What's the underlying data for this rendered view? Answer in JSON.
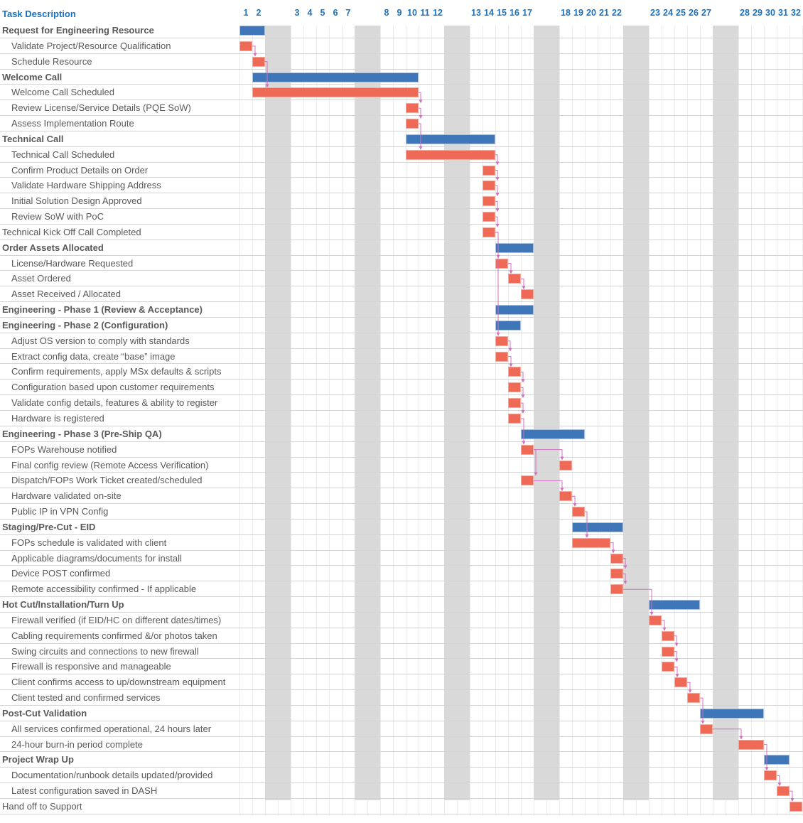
{
  "header": {
    "title": "Task Description"
  },
  "colors": {
    "summary": "#3f76b8",
    "task": "#ee6a57",
    "weekend": "#d9d9d9",
    "dependency": "#d070c0",
    "header": "#1a73c0"
  },
  "chart_data": {
    "type": "gantt",
    "x_unit": "working day",
    "days": [
      1,
      2,
      3,
      4,
      5,
      6,
      7,
      8,
      9,
      10,
      11,
      12,
      13,
      14,
      15,
      16,
      17,
      18,
      19,
      20,
      21,
      22,
      23,
      24,
      25,
      26,
      27,
      28,
      29,
      30,
      31,
      32
    ],
    "weekend_after_days": [
      2,
      7,
      12,
      17,
      22,
      27
    ],
    "tasks": [
      {
        "name": "Request for Engineering Resource",
        "type": "summary",
        "start": 1,
        "end": 2
      },
      {
        "name": "Validate Project/Resource Qualification",
        "type": "task",
        "start": 1,
        "end": 1
      },
      {
        "name": "Schedule Resource",
        "type": "task",
        "start": 2,
        "end": 2,
        "dep": 1
      },
      {
        "name": "Welcome Call",
        "type": "summary",
        "start": 2,
        "end": 10
      },
      {
        "name": "Welcome Call Scheduled",
        "type": "task",
        "start": 2,
        "end": 10,
        "dep": 2
      },
      {
        "name": "Review License/Service Details (PQE SoW)",
        "type": "task",
        "start": 10,
        "end": 10,
        "dep": 4
      },
      {
        "name": "Assess Implementation Route",
        "type": "task",
        "start": 10,
        "end": 10,
        "dep": 5
      },
      {
        "name": "Technical Call",
        "type": "summary",
        "start": 10,
        "end": 14
      },
      {
        "name": "Technical Call Scheduled",
        "type": "task",
        "start": 10,
        "end": 14,
        "dep": 6
      },
      {
        "name": "Confirm Product Details on Order",
        "type": "task",
        "start": 14,
        "end": 14,
        "dep": 8
      },
      {
        "name": "Validate Hardware Shipping Address",
        "type": "task",
        "start": 14,
        "end": 14,
        "dep": 9
      },
      {
        "name": "Initial Solution Design Approved",
        "type": "task",
        "start": 14,
        "end": 14,
        "dep": 10
      },
      {
        "name": "Review SoW with PoC",
        "type": "task",
        "start": 14,
        "end": 14,
        "dep": 11
      },
      {
        "name": "Technical Kick Off Call Completed",
        "type": "milestone",
        "start": 14,
        "end": 14,
        "dep": 12
      },
      {
        "name": "Order Assets Allocated",
        "type": "summary",
        "start": 15,
        "end": 17
      },
      {
        "name": "License/Hardware Requested",
        "type": "task",
        "start": 15,
        "end": 15,
        "dep": 13
      },
      {
        "name": "Asset Ordered",
        "type": "task",
        "start": 16,
        "end": 16,
        "dep": 15
      },
      {
        "name": "Asset Received / Allocated",
        "type": "task",
        "start": 17,
        "end": 17,
        "dep": 16
      },
      {
        "name": "Engineering - Phase 1 (Review & Acceptance)",
        "type": "summary",
        "start": 15,
        "end": 17
      },
      {
        "name": "Engineering - Phase 2 (Configuration)",
        "type": "summary",
        "start": 15,
        "end": 16
      },
      {
        "name": "Adjust OS version to comply with standards",
        "type": "task",
        "start": 15,
        "end": 15,
        "dep": 13
      },
      {
        "name": "Extract config data, create “base” image",
        "type": "task",
        "start": 15,
        "end": 15,
        "dep": 20
      },
      {
        "name": "Confirm requirements, apply MSx defaults & scripts",
        "type": "task",
        "start": 16,
        "end": 16,
        "dep": 21
      },
      {
        "name": "Configuration based upon customer requirements",
        "type": "task",
        "start": 16,
        "end": 16,
        "dep": 22
      },
      {
        "name": "Validate config details, features & ability to register",
        "type": "task",
        "start": 16,
        "end": 16,
        "dep": 23
      },
      {
        "name": "Hardware is registered",
        "type": "task",
        "start": 16,
        "end": 16,
        "dep": 24
      },
      {
        "name": "Engineering - Phase 3 (Pre-Ship QA)",
        "type": "summary",
        "start": 17,
        "end": 19
      },
      {
        "name": "FOPs Warehouse notified",
        "type": "task",
        "start": 17,
        "end": 17,
        "dep": 25
      },
      {
        "name": "Final config review (Remote Access Verification)",
        "type": "task",
        "start": 18,
        "end": 18,
        "dep": 27
      },
      {
        "name": "Dispatch/FOPs Work Ticket created/scheduled",
        "type": "task",
        "start": 17,
        "end": 17,
        "dep": 27
      },
      {
        "name": "Hardware validated on-site",
        "type": "task",
        "start": 18,
        "end": 18,
        "dep": 29
      },
      {
        "name": "Public IP in VPN Config",
        "type": "task",
        "start": 19,
        "end": 19,
        "dep": 30
      },
      {
        "name": "Staging/Pre-Cut - EID",
        "type": "summary",
        "start": 19,
        "end": 22
      },
      {
        "name": "FOPs schedule is validated with client",
        "type": "task",
        "start": 19,
        "end": 21,
        "dep": 31
      },
      {
        "name": "Applicable diagrams/documents for install",
        "type": "task",
        "start": 22,
        "end": 22,
        "dep": 33
      },
      {
        "name": "Device POST confirmed",
        "type": "task",
        "start": 22,
        "end": 22,
        "dep": 34
      },
      {
        "name": "Remote accessibility confirmed - If applicable",
        "type": "task",
        "start": 22,
        "end": 22,
        "dep": 35
      },
      {
        "name": "Hot Cut/Installation/Turn Up",
        "type": "summary",
        "start": 23,
        "end": 26
      },
      {
        "name": "Firewall verified (if EID/HC on different dates/times)",
        "type": "task",
        "start": 23,
        "end": 23,
        "dep": 36
      },
      {
        "name": "Cabling requirements confirmed &/or photos taken",
        "type": "task",
        "start": 24,
        "end": 24,
        "dep": 38
      },
      {
        "name": "Swing circuits and connections to new firewall",
        "type": "task",
        "start": 24,
        "end": 24,
        "dep": 39
      },
      {
        "name": "Firewall is responsive and manageable",
        "type": "task",
        "start": 24,
        "end": 24,
        "dep": 40
      },
      {
        "name": "Client confirms access to up/downstream equipment",
        "type": "task",
        "start": 25,
        "end": 25,
        "dep": 41
      },
      {
        "name": "Client tested and confirmed services",
        "type": "task",
        "start": 26,
        "end": 26,
        "dep": 42
      },
      {
        "name": "Post-Cut Validation",
        "type": "summary",
        "start": 27,
        "end": 29
      },
      {
        "name": "All services confirmed operational, 24 hours later",
        "type": "task",
        "start": 27,
        "end": 27,
        "dep": 43
      },
      {
        "name": "24-hour burn-in period complete",
        "type": "task",
        "start": 28,
        "end": 29,
        "dep": 45
      },
      {
        "name": "Project Wrap Up",
        "type": "summary",
        "start": 30,
        "end": 31
      },
      {
        "name": "Documentation/runbook details updated/provided",
        "type": "task",
        "start": 30,
        "end": 30,
        "dep": 46
      },
      {
        "name": "Latest configuration saved in DASH",
        "type": "task",
        "start": 31,
        "end": 31,
        "dep": 48
      },
      {
        "name": "Hand off to Support",
        "type": "milestone",
        "start": 32,
        "end": 32,
        "dep": 49
      }
    ]
  }
}
